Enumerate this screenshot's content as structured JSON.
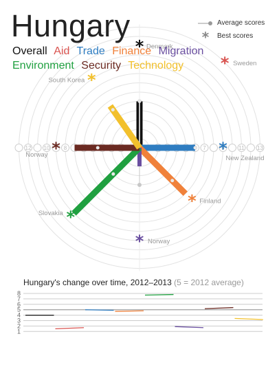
{
  "title": "Hungary",
  "categories": [
    {
      "name": "Overall",
      "color": "#111111"
    },
    {
      "name": "Aid",
      "color": "#d9534f"
    },
    {
      "name": "Trade",
      "color": "#2f7dc1"
    },
    {
      "name": "Finance",
      "color": "#f0813a"
    },
    {
      "name": "Migration",
      "color": "#6a4fa0"
    },
    {
      "name": "Environment",
      "color": "#20a040"
    },
    {
      "name": "Security",
      "color": "#6b2a22"
    },
    {
      "name": "Technology",
      "color": "#f2c02c"
    }
  ],
  "legend": {
    "average": "Average scores",
    "best": "Best scores"
  },
  "ring_labels": [
    "2",
    "3",
    "4",
    "5",
    "6",
    "7",
    "8",
    "9",
    "10",
    "11",
    "12",
    "13"
  ],
  "best_labels": [
    {
      "country": "Denmark",
      "category": "Overall"
    },
    {
      "country": "Sweden",
      "category": "Aid"
    },
    {
      "country": "New Zealand",
      "category": "Trade"
    },
    {
      "country": "Finland",
      "category": "Finance"
    },
    {
      "country": "Norway",
      "category": "Migration"
    },
    {
      "country": "Slovakia",
      "category": "Environment"
    },
    {
      "country": "Norway",
      "category": "Security"
    },
    {
      "country": "South Korea",
      "category": "Technology"
    }
  ],
  "chart_data": [
    {
      "type": "radial-bar",
      "title": "Hungary",
      "unit_note": "score rings 2 to 13",
      "series": [
        {
          "name": "Overall",
          "score": 5.0,
          "average": 5.0,
          "best": 11.0,
          "best_country": "Denmark"
        },
        {
          "name": "Aid",
          "score": 0.0,
          "average": 0.0,
          "best": 13.0,
          "best_country": "Sweden"
        },
        {
          "name": "Trade",
          "score": 6.0,
          "average": 6.0,
          "best": 9.0,
          "best_country": "New Zealand"
        },
        {
          "name": "Finance",
          "score": 7.0,
          "average": 5.0,
          "best": 8.0,
          "best_country": "Finland"
        },
        {
          "name": "Migration",
          "score": 2.0,
          "average": 4.0,
          "best": 10.0,
          "best_country": "Norway"
        },
        {
          "name": "Environment",
          "score": 10.0,
          "average": 4.0,
          "best": 10.5,
          "best_country": "Slovakia"
        },
        {
          "name": "Security",
          "score": 7.0,
          "average": 4.5,
          "best": 9.0,
          "best_country": "Norway"
        },
        {
          "name": "Technology",
          "score": 5.5,
          "average": 5.0,
          "best": 9.0,
          "best_country": "South Korea"
        }
      ]
    },
    {
      "type": "line",
      "title": "Hungary's change over time, 2012–2013",
      "note": "(5 = 2012 average)",
      "ylim": [
        1,
        8
      ],
      "yticks": [
        "1",
        "2",
        "3",
        "4",
        "5",
        "6",
        "7",
        "8"
      ],
      "series": [
        {
          "name": "Overall",
          "values": [
            4.0,
            4.0
          ]
        },
        {
          "name": "Aid",
          "values": [
            1.5,
            1.7
          ]
        },
        {
          "name": "Trade",
          "values": [
            5.0,
            4.9
          ]
        },
        {
          "name": "Finance",
          "values": [
            4.7,
            4.8
          ]
        },
        {
          "name": "Environment",
          "values": [
            7.7,
            7.8
          ]
        },
        {
          "name": "Migration",
          "values": [
            1.9,
            1.7
          ]
        },
        {
          "name": "Security",
          "values": [
            5.2,
            5.4
          ]
        },
        {
          "name": "Technology",
          "values": [
            3.4,
            3.2
          ]
        }
      ]
    }
  ]
}
